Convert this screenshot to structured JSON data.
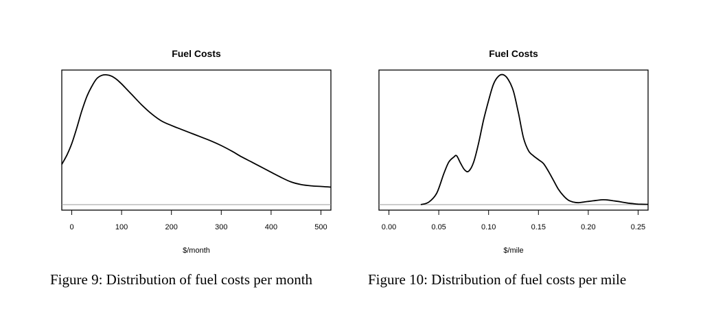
{
  "chart_data": [
    {
      "type": "line",
      "title": "Fuel Costs",
      "xlabel": "$/month",
      "ylabel": "",
      "xlim": [
        -20,
        520
      ],
      "xticks": [
        0,
        100,
        200,
        300,
        400,
        500
      ],
      "xtick_labels": [
        "0",
        "100",
        "200",
        "300",
        "400",
        "500"
      ],
      "y_axis_shown": false,
      "grid": false,
      "baseline": 0,
      "series": [
        {
          "x": [
            -20,
            -10,
            0,
            10,
            20,
            30,
            40,
            50,
            60,
            70,
            80,
            90,
            100,
            110,
            120,
            140,
            160,
            180,
            200,
            220,
            240,
            260,
            280,
            300,
            320,
            340,
            360,
            380,
            400,
            420,
            440,
            460,
            480,
            500,
            520
          ],
          "values": [
            0.31,
            0.38,
            0.47,
            0.59,
            0.72,
            0.83,
            0.91,
            0.97,
            0.996,
            1.0,
            0.99,
            0.965,
            0.93,
            0.89,
            0.85,
            0.77,
            0.7,
            0.645,
            0.61,
            0.58,
            0.55,
            0.52,
            0.49,
            0.455,
            0.415,
            0.37,
            0.33,
            0.29,
            0.25,
            0.21,
            0.175,
            0.155,
            0.145,
            0.14,
            0.135
          ]
        }
      ]
    },
    {
      "type": "line",
      "title": "Fuel Costs",
      "xlabel": "$/mile",
      "ylabel": "",
      "xlim": [
        -0.01,
        0.26
      ],
      "xticks": [
        0.0,
        0.05,
        0.1,
        0.15,
        0.2,
        0.25
      ],
      "xtick_labels": [
        "0.00",
        "0.05",
        "0.10",
        "0.15",
        "0.20",
        "0.25"
      ],
      "y_axis_shown": false,
      "grid": false,
      "baseline": 0,
      "series": [
        {
          "x": [
            0.032,
            0.04,
            0.048,
            0.055,
            0.06,
            0.065,
            0.068,
            0.072,
            0.076,
            0.08,
            0.085,
            0.09,
            0.095,
            0.1,
            0.105,
            0.11,
            0.115,
            0.12,
            0.125,
            0.13,
            0.135,
            0.14,
            0.145,
            0.15,
            0.155,
            0.16,
            0.165,
            0.17,
            0.175,
            0.18,
            0.185,
            0.19,
            0.195,
            0.2,
            0.205,
            0.21,
            0.215,
            0.22,
            0.225,
            0.23,
            0.235,
            0.24,
            0.245,
            0.25,
            0.26
          ],
          "values": [
            0.0,
            0.02,
            0.09,
            0.24,
            0.33,
            0.37,
            0.38,
            0.32,
            0.27,
            0.26,
            0.33,
            0.48,
            0.66,
            0.81,
            0.94,
            1.0,
            1.01,
            0.97,
            0.88,
            0.71,
            0.52,
            0.42,
            0.38,
            0.35,
            0.32,
            0.26,
            0.19,
            0.12,
            0.07,
            0.035,
            0.02,
            0.015,
            0.02,
            0.025,
            0.03,
            0.035,
            0.038,
            0.036,
            0.03,
            0.025,
            0.018,
            0.012,
            0.008,
            0.004,
            0.002
          ]
        }
      ]
    }
  ],
  "captions": {
    "left": "Figure 9:  Distribution of fuel costs per month",
    "right": "Figure 10:  Distribution of fuel costs per mile"
  }
}
